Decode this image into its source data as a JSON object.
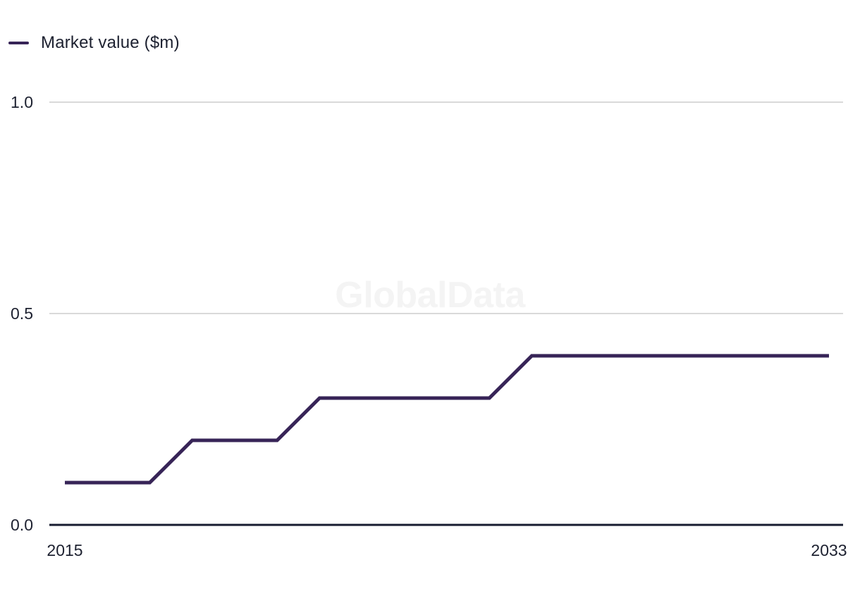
{
  "legend": {
    "label": "Market value ($m)"
  },
  "chart_data": {
    "type": "line",
    "title": "",
    "watermark": "GlobalData",
    "x": [
      2015,
      2016,
      2017,
      2018,
      2019,
      2020,
      2021,
      2022,
      2023,
      2024,
      2025,
      2026,
      2027,
      2028,
      2029,
      2030,
      2031,
      2032,
      2033
    ],
    "series": [
      {
        "name": "Market value ($m)",
        "color": "#372457",
        "values": [
          0.1,
          0.1,
          0.1,
          0.2,
          0.2,
          0.2,
          0.3,
          0.3,
          0.3,
          0.3,
          0.3,
          0.4,
          0.4,
          0.4,
          0.4,
          0.4,
          0.4,
          0.4,
          0.4
        ]
      }
    ],
    "xlabel": "",
    "ylabel": "",
    "xlim": [
      2015,
      2033
    ],
    "ylim": [
      0.0,
      1.0
    ],
    "y_ticks": [
      {
        "value": 0.0,
        "label": "0.0"
      },
      {
        "value": 0.5,
        "label": "0.5"
      },
      {
        "value": 1.0,
        "label": "1.0"
      }
    ],
    "x_ticks": [
      {
        "value": 2015,
        "label": "2015"
      },
      {
        "value": 2033,
        "label": "2033"
      }
    ],
    "grid": "horizontal",
    "legend_position": "top-left",
    "colors": {
      "line": "#372457",
      "axis": "#171c30",
      "grid": "#d9d9d9",
      "tick_text": "#1d2130",
      "watermark": "#f4f4f4",
      "background": "#ffffff"
    }
  }
}
